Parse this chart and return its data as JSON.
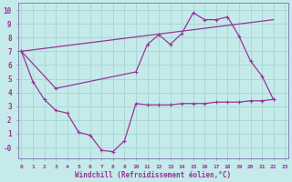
{
  "background_color": "#c5eaea",
  "grid_color": "#a8d8d8",
  "line_color": "#993399",
  "spine_color": "#7777aa",
  "xlim": [
    -0.3,
    23.3
  ],
  "ylim": [
    -0.8,
    10.5
  ],
  "xlabel": "Windchill (Refroidissement éolien,°C)",
  "xticks": [
    0,
    1,
    2,
    3,
    4,
    5,
    6,
    7,
    8,
    9,
    10,
    11,
    12,
    13,
    14,
    15,
    16,
    17,
    18,
    19,
    20,
    21,
    22,
    23
  ],
  "yticks": [
    0,
    1,
    2,
    3,
    4,
    5,
    6,
    7,
    8,
    9,
    10
  ],
  "ytick_labels": [
    "-0",
    "1",
    "2",
    "3",
    "4",
    "5",
    "6",
    "7",
    "8",
    "9",
    "10"
  ],
  "series1": [
    [
      0,
      7.0
    ],
    [
      1,
      4.8
    ],
    [
      2,
      3.5
    ],
    [
      3,
      2.7
    ],
    [
      4,
      2.5
    ],
    [
      5,
      1.1
    ],
    [
      6,
      0.9
    ],
    [
      7,
      -0.2
    ],
    [
      8,
      -0.3
    ],
    [
      9,
      0.5
    ],
    [
      10,
      3.2
    ],
    [
      11,
      3.1
    ],
    [
      12,
      3.1
    ],
    [
      13,
      3.1
    ],
    [
      14,
      3.2
    ],
    [
      15,
      3.2
    ],
    [
      16,
      3.2
    ],
    [
      17,
      3.3
    ],
    [
      18,
      3.3
    ],
    [
      19,
      3.3
    ],
    [
      20,
      3.4
    ],
    [
      21,
      3.4
    ],
    [
      22,
      3.5
    ]
  ],
  "series2": [
    [
      0,
      7.0
    ],
    [
      3,
      4.3
    ],
    [
      10,
      5.5
    ],
    [
      11,
      7.5
    ],
    [
      12,
      8.2
    ],
    [
      13,
      7.5
    ],
    [
      14,
      8.3
    ],
    [
      15,
      9.8
    ],
    [
      16,
      9.3
    ],
    [
      17,
      9.3
    ],
    [
      18,
      9.5
    ],
    [
      19,
      8.1
    ],
    [
      20,
      6.3
    ],
    [
      21,
      5.2
    ],
    [
      22,
      3.5
    ]
  ],
  "series3": [
    [
      0,
      7.0
    ],
    [
      22,
      9.3
    ]
  ]
}
